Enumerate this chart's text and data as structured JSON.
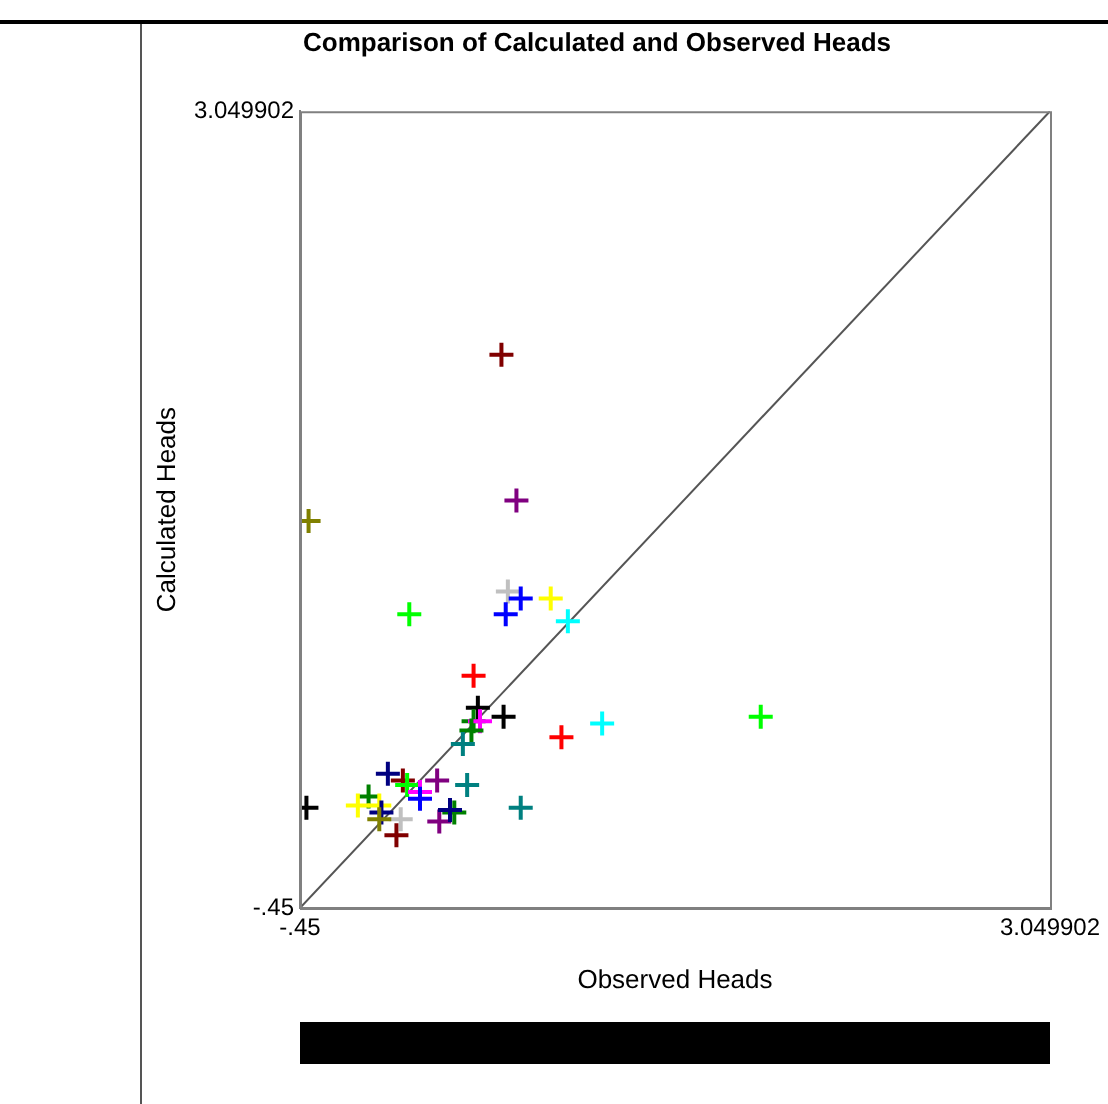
{
  "chart_data": {
    "type": "scatter",
    "title": "Comparison of Calculated and Observed Heads",
    "xlabel": "Observed Heads",
    "ylabel": "Calculated Heads",
    "xlim": [
      -0.45,
      3.049902
    ],
    "ylim": [
      -0.45,
      3.049902
    ],
    "xticks": [
      {
        "value": -0.45,
        "label": "-.45"
      },
      3.049902
    ],
    "yticks": [
      {
        "value": -0.45,
        "label": "-.45"
      },
      3.049902
    ],
    "grid": false,
    "legend": false,
    "marker": "cross",
    "series": [
      {
        "x": [
          0.49,
          0.56,
          -0.41,
          0.06,
          0.52,
          0.58,
          0.51,
          0.72,
          0.8,
          0.36,
          0.38,
          0.5,
          0.36,
          0.39,
          0.35,
          0.31,
          0.77,
          0.96,
          1.7,
          -0.04,
          0.03,
          0.05,
          0.19,
          0.33,
          0.11,
          0.11,
          -0.13,
          -0.18,
          -0.08,
          -0.07,
          -0.42,
          0.02,
          -0.08,
          0.0,
          0.2,
          0.27,
          0.25,
          0.58
        ],
        "values": [
          1.98,
          1.34,
          1.25,
          0.84,
          0.94,
          0.91,
          0.84,
          0.91,
          0.81,
          0.57,
          0.43,
          0.39,
          0.37,
          0.37,
          0.33,
          0.27,
          0.3,
          0.36,
          0.39,
          0.14,
          0.11,
          0.09,
          0.11,
          0.09,
          0.06,
          0.03,
          0.04,
          0.0,
          0.0,
          -0.03,
          -0.01,
          -0.06,
          -0.06,
          -0.13,
          -0.07,
          -0.03,
          -0.02,
          -0.01
        ],
        "colors": [
          "#800000",
          "#800080",
          "#808000",
          "#00ff00",
          "#c0c0c0",
          "#0000ff",
          "#0000ff",
          "#ffff00",
          "#00ffff",
          "#ff0000",
          "#000000",
          "#000000",
          "#008000",
          "#ff00ff",
          "#008000",
          "#008080",
          "#ff0000",
          "#00ffff",
          "#00ff00",
          "#000080",
          "#800000",
          "#00ff00",
          "#800080",
          "#008080",
          "#ff00ff",
          "#0000ff",
          "#008000",
          "#ffff00",
          "#ffff00",
          "#000080",
          "#000000",
          "#c0c0c0",
          "#808000",
          "#800000",
          "#800080",
          "#008000",
          "#000080",
          "#008080"
        ]
      },
      {
        "type": "line",
        "x": [
          -0.45,
          3.049902
        ],
        "values": [
          -0.45,
          3.049902
        ],
        "color": "#555555",
        "marker": "none",
        "line_style": "solid"
      }
    ]
  }
}
